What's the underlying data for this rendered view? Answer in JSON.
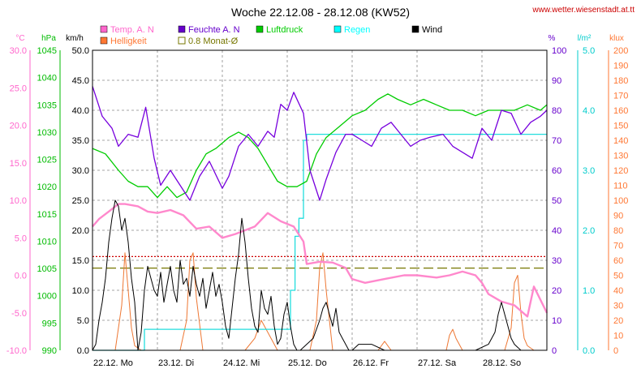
{
  "chart_data": {
    "type": "line",
    "title": "Woche 22.12.08 - 28.12.08 (KW52)",
    "source": "www.wetter.wiesenstadt.at.tt",
    "x_categories": [
      "22.12. Mo",
      "23.12. Di",
      "24.12. Mi",
      "25.12. Do",
      "26.12. Fr",
      "27.12. Sa",
      "28.12. So"
    ],
    "axes": {
      "temp": {
        "unit": "°C",
        "color": "#ff66cc",
        "min": -10,
        "max": 30,
        "step": 5,
        "ticks": [
          "30.0",
          "25.0",
          "20.0",
          "15.0",
          "10.0",
          "5.0",
          "0.0",
          "-5.0",
          "-10.0"
        ]
      },
      "pressure": {
        "unit": "hPa",
        "color": "#00bb00",
        "min": 990,
        "max": 1045,
        "step": 5,
        "ticks": [
          "1045",
          "1040",
          "1035",
          "1030",
          "1025",
          "1020",
          "1015",
          "1010",
          "1005",
          "1000",
          "995",
          "990"
        ]
      },
      "wind": {
        "unit": "km/h",
        "color": "#000000",
        "min": 0,
        "max": 50,
        "step": 5,
        "ticks": [
          "50.0",
          "45.0",
          "40.0",
          "35.0",
          "30.0",
          "25.0",
          "20.0",
          "15.0",
          "10.0",
          "5.0",
          "0.0"
        ]
      },
      "humidity": {
        "unit": "%",
        "color": "#6600cc",
        "min": 0,
        "max": 100,
        "step": 10,
        "ticks": [
          "100",
          "90",
          "80",
          "70",
          "60",
          "50",
          "40",
          "30",
          "20",
          "10",
          "0"
        ]
      },
      "rain": {
        "unit": "l/m²",
        "color": "#00cccc",
        "min": 0,
        "max": 5,
        "step": 1,
        "ticks": [
          "5.0",
          "4.0",
          "3.0",
          "2.0",
          "1.0",
          "0.0"
        ]
      },
      "lux": {
        "unit": "klux",
        "color": "#ff7733",
        "min": 0,
        "max": 200,
        "step": 10,
        "ticks": [
          "200",
          "190",
          "180",
          "170",
          "160",
          "150",
          "140",
          "130",
          "120",
          "110",
          "100",
          "90",
          "80",
          "70",
          "60",
          "50",
          "40",
          "30",
          "20",
          "10",
          "0"
        ]
      }
    },
    "legend": [
      {
        "label": "Temp. A. N",
        "color": "#ff66cc",
        "style": "filled"
      },
      {
        "label": "Feuchte A. N",
        "color": "#6600cc",
        "style": "filled"
      },
      {
        "label": "Luftdruck",
        "color": "#00cc00",
        "style": "filled"
      },
      {
        "label": "Regen",
        "color": "#00ffff",
        "style": "filled"
      },
      {
        "label": "Wind",
        "color": "#000000",
        "style": "filled"
      },
      {
        "label": "Helligkeit",
        "color": "#ff7733",
        "style": "filled"
      },
      {
        "label": "0.8 Monat-Ø",
        "color": "#777700",
        "style": "outline"
      }
    ],
    "reference_lines": [
      {
        "axis": "wind",
        "value": 13.7,
        "color": "#777700",
        "style": "dash"
      },
      {
        "axis": "temp",
        "value": 2.5,
        "color": "#cc0000",
        "style": "dot"
      }
    ],
    "series": {
      "temperature": {
        "axis": "temp",
        "color": "#ff88cc",
        "width": 2.4,
        "x": [
          0,
          0.1,
          0.25,
          0.4,
          0.5,
          0.7,
          0.85,
          1.0,
          1.2,
          1.4,
          1.6,
          1.8,
          2.0,
          2.2,
          2.5,
          2.7,
          2.9,
          3.1,
          3.25,
          3.3,
          3.5,
          3.7,
          3.9,
          4.0,
          4.2,
          4.5,
          4.8,
          5.0,
          5.3,
          5.5,
          5.7,
          5.9,
          6.0,
          6.1,
          6.2,
          6.3,
          6.5,
          6.7,
          6.8,
          7.0
        ],
        "y": [
          6.5,
          7.5,
          8.5,
          9.5,
          9.5,
          9.2,
          8.5,
          8.3,
          8.7,
          8,
          6.2,
          6.5,
          5,
          5.5,
          6.5,
          8.3,
          7.2,
          6.5,
          4.5,
          1.5,
          1.8,
          1.7,
          1,
          -0.5,
          -1,
          -0.5,
          0,
          0,
          -0.3,
          0,
          0.5,
          0,
          -1,
          -2.5,
          -3,
          -3.5,
          -4,
          -5.5,
          -1.5,
          -5
        ]
      },
      "humidity": {
        "axis": "humidity",
        "color": "#7700dd",
        "width": 1.3,
        "x": [
          0,
          0.15,
          0.3,
          0.4,
          0.55,
          0.7,
          0.82,
          0.95,
          1.05,
          1.2,
          1.35,
          1.5,
          1.65,
          1.8,
          2.0,
          2.1,
          2.25,
          2.4,
          2.55,
          2.7,
          2.8,
          2.9,
          3.0,
          3.1,
          3.25,
          3.35,
          3.5,
          3.6,
          3.75,
          3.9,
          4.0,
          4.15,
          4.3,
          4.45,
          4.6,
          4.75,
          4.9,
          5.05,
          5.2,
          5.4,
          5.55,
          5.7,
          5.85,
          6.0,
          6.15,
          6.3,
          6.45,
          6.6,
          6.75,
          6.9,
          7.0
        ],
        "y": [
          88,
          78,
          74,
          68,
          72,
          71,
          81,
          64,
          55,
          60,
          55,
          50,
          58,
          63,
          54,
          58,
          68,
          72,
          68,
          73,
          71,
          82,
          80,
          86,
          79,
          60,
          50,
          57,
          66,
          72,
          72,
          70,
          68,
          74,
          76,
          72,
          68,
          70,
          71,
          72,
          68,
          66,
          64,
          74,
          70,
          80,
          79,
          72,
          76,
          78,
          80
        ]
      },
      "pressure": {
        "axis": "pressure",
        "color": "#00cc00",
        "width": 1.3,
        "x": [
          0,
          0.2,
          0.4,
          0.55,
          0.7,
          0.85,
          1.0,
          1.15,
          1.3,
          1.45,
          1.6,
          1.75,
          1.9,
          2.1,
          2.25,
          2.4,
          2.55,
          2.7,
          2.85,
          3.0,
          3.15,
          3.3,
          3.45,
          3.6,
          3.8,
          4.0,
          4.2,
          4.4,
          4.55,
          4.7,
          4.9,
          5.1,
          5.3,
          5.5,
          5.7,
          5.9,
          6.1,
          6.3,
          6.5,
          6.7,
          6.9,
          7.0
        ],
        "y": [
          1027,
          1026,
          1023,
          1021,
          1020,
          1020,
          1018,
          1020,
          1018,
          1019,
          1023,
          1026,
          1027,
          1029,
          1030,
          1029,
          1027,
          1024,
          1021,
          1020,
          1020,
          1021,
          1026,
          1029,
          1031,
          1033,
          1034,
          1036,
          1037,
          1036,
          1035,
          1036,
          1035,
          1034,
          1034,
          1033,
          1034,
          1034,
          1034,
          1035,
          1034,
          1035
        ]
      },
      "rain": {
        "axis": "rain",
        "color": "#22dddd",
        "width": 1.3,
        "step": true,
        "x": [
          0,
          0.8,
          3.0,
          3.05,
          3.12,
          3.18,
          3.25,
          3.3,
          7.0
        ],
        "y": [
          0,
          0.35,
          0.35,
          1.0,
          1.9,
          2.2,
          3.5,
          3.6,
          3.6
        ]
      },
      "wind": {
        "axis": "wind",
        "color": "#000000",
        "width": 1.0,
        "x": [
          0,
          0.05,
          0.1,
          0.15,
          0.2,
          0.25,
          0.3,
          0.35,
          0.4,
          0.45,
          0.5,
          0.55,
          0.6,
          0.65,
          0.7,
          0.75,
          0.8,
          0.85,
          0.9,
          0.95,
          1.0,
          1.05,
          1.1,
          1.15,
          1.2,
          1.25,
          1.3,
          1.35,
          1.4,
          1.45,
          1.5,
          1.55,
          1.6,
          1.65,
          1.7,
          1.75,
          1.8,
          1.85,
          1.9,
          1.95,
          2.0,
          2.05,
          2.1,
          2.15,
          2.2,
          2.25,
          2.3,
          2.35,
          2.4,
          2.45,
          2.5,
          2.55,
          2.6,
          2.65,
          2.7,
          2.75,
          2.8,
          2.85,
          2.9,
          2.95,
          3.0,
          3.05,
          3.1,
          3.15,
          3.2,
          3.3,
          3.4,
          3.5,
          3.55,
          3.6,
          3.65,
          3.7,
          3.75,
          3.8,
          3.85,
          3.9,
          3.95,
          4.0,
          4.1,
          4.3,
          4.5,
          4.7,
          5.0,
          5.3,
          5.6,
          5.9,
          6.1,
          6.2,
          6.25,
          6.3,
          6.35,
          6.4,
          6.45,
          6.5,
          6.6,
          6.8,
          7.0
        ],
        "y": [
          0,
          1,
          5,
          8,
          12,
          18,
          22,
          25,
          24,
          20,
          22,
          18,
          12,
          8,
          0,
          3,
          10,
          14,
          12,
          10,
          9,
          13,
          8,
          11,
          14,
          10,
          8,
          15,
          11,
          12,
          9,
          14,
          11,
          9,
          12,
          7,
          10,
          13,
          9,
          11,
          8,
          4,
          2,
          7,
          12,
          16,
          22,
          18,
          12,
          7,
          4,
          3,
          10,
          7,
          6,
          9,
          4,
          1,
          2,
          6,
          8,
          4,
          1,
          0,
          0,
          1,
          2,
          5,
          7,
          8,
          6,
          4,
          7,
          3,
          2,
          1,
          0,
          0,
          1,
          1,
          0,
          0,
          0,
          0,
          0,
          0,
          1,
          3,
          6,
          8,
          6,
          4,
          2,
          1,
          0,
          0,
          0
        ]
      },
      "brightness": {
        "axis": "lux",
        "color": "#ee7733",
        "width": 1.0,
        "x": [
          0,
          0.35,
          0.45,
          0.5,
          0.55,
          0.6,
          0.65,
          0.75,
          1.35,
          1.45,
          1.5,
          1.55,
          1.6,
          1.7,
          2.35,
          2.5,
          2.6,
          2.7,
          2.85,
          3.35,
          3.45,
          3.5,
          3.55,
          3.6,
          3.7,
          4.4,
          4.5,
          4.6,
          5.45,
          5.5,
          5.55,
          5.6,
          5.7,
          6.35,
          6.45,
          6.5,
          6.55,
          6.6,
          6.65,
          6.7,
          6.8,
          7.0
        ],
        "y": [
          0,
          0,
          30,
          65,
          40,
          15,
          3,
          0,
          0,
          20,
          60,
          65,
          35,
          0,
          0,
          8,
          20,
          12,
          0,
          0,
          20,
          55,
          65,
          40,
          0,
          0,
          6,
          0,
          0,
          10,
          14,
          8,
          0,
          0,
          15,
          45,
          50,
          25,
          8,
          3,
          0,
          0
        ]
      }
    }
  }
}
